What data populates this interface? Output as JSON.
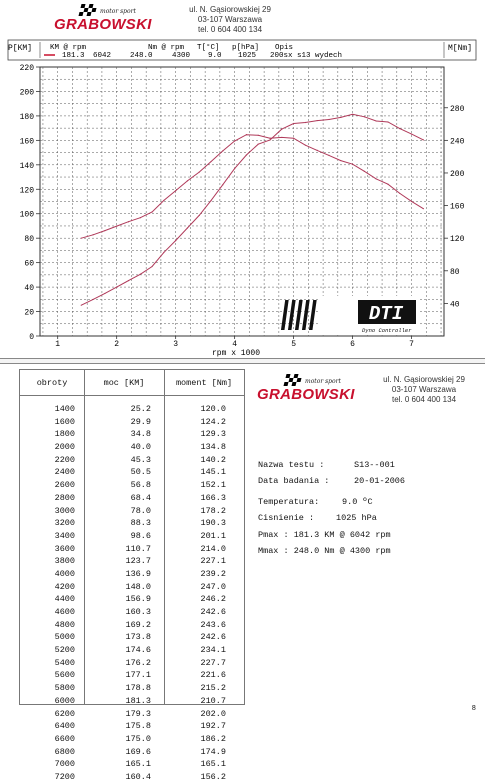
{
  "header": {
    "brand_tagline": "motor sport",
    "brand_name": "GRABOWSKI",
    "address_line1": "ul. N. Gąsiorowskiej 29",
    "address_line2": "03-107 Warszawa",
    "phone": "tel. 0 604 400 134"
  },
  "colors": {
    "accent": "#c8102e",
    "curve": "#b03a5a",
    "grid": "#444444"
  },
  "chart_data": {
    "type": "line",
    "legend_header": {
      "col1": "KM @ rpm",
      "col2": "Nm @ rpm",
      "col3": "T[°C]",
      "col4": "p[hPa]",
      "col5": "Opis"
    },
    "legend_entry": {
      "km": "181.3",
      "km_rpm": "6042",
      "nm": "248.0",
      "nm_rpm": "4300",
      "temp": "9.0",
      "pressure": "1025",
      "desc": "200sx s13 wydech"
    },
    "left_axis_label": "P[KM]",
    "right_axis_label": "M[Nm]",
    "xlabel": "rpm   x 1000",
    "xlim": [
      0.7,
      7.55
    ],
    "ylim_left": [
      0,
      220
    ],
    "ylim_right": [
      0,
      330
    ],
    "x_ticks": [
      "1",
      "2",
      "3",
      "4",
      "5",
      "6",
      "7"
    ],
    "y_ticks_left": [
      "0",
      "20",
      "40",
      "60",
      "80",
      "100",
      "120",
      "140",
      "160",
      "180",
      "200",
      "220"
    ],
    "y_ticks_right": [
      "40",
      "80",
      "120",
      "160",
      "200",
      "240",
      "280"
    ],
    "badge": {
      "text": "DTI",
      "subtext": "Dyno Controller"
    },
    "series": [
      {
        "name": "",
        "axis": "left",
        "x": [
          1.4,
          1.6,
          1.8,
          2.0,
          2.2,
          2.4,
          2.6,
          2.8,
          3.0,
          3.2,
          3.4,
          3.6,
          3.8,
          4.0,
          4.2,
          4.4,
          4.6,
          4.8,
          5.0,
          5.2,
          5.4,
          5.6,
          5.8,
          6.0,
          6.2,
          6.4,
          6.6,
          6.8,
          7.0,
          7.2
        ],
        "values": [
          25.2,
          29.9,
          34.8,
          40.0,
          45.3,
          50.5,
          56.8,
          68.4,
          78.0,
          88.3,
          98.6,
          110.7,
          123.7,
          136.9,
          148.0,
          156.9,
          160.3,
          169.2,
          173.8,
          174.6,
          176.2,
          177.1,
          178.8,
          181.3,
          179.3,
          175.8,
          175.0,
          169.6,
          165.1,
          160.4
        ]
      },
      {
        "name": "",
        "axis": "right",
        "x": [
          1.4,
          1.6,
          1.8,
          2.0,
          2.2,
          2.4,
          2.6,
          2.8,
          3.0,
          3.2,
          3.4,
          3.6,
          3.8,
          4.0,
          4.2,
          4.4,
          4.6,
          4.8,
          5.0,
          5.2,
          5.4,
          5.6,
          5.8,
          6.0,
          6.2,
          6.4,
          6.6,
          6.8,
          7.0,
          7.2
        ],
        "values": [
          120.0,
          124.2,
          129.3,
          134.8,
          140.2,
          145.1,
          152.1,
          166.3,
          178.2,
          190.3,
          201.1,
          214.0,
          227.1,
          239.2,
          247.0,
          246.2,
          242.6,
          243.6,
          242.6,
          234.1,
          227.7,
          221.6,
          215.2,
          210.7,
          202.0,
          192.7,
          186.2,
          174.9,
          165.1,
          156.2
        ]
      }
    ]
  },
  "table": {
    "headers": [
      "obroty",
      "moc [KM]",
      "moment [Nm]"
    ],
    "rows": [
      [
        "1400",
        "25.2",
        "120.0"
      ],
      [
        "1600",
        "29.9",
        "124.2"
      ],
      [
        "1800",
        "34.8",
        "129.3"
      ],
      [
        "2000",
        "40.0",
        "134.8"
      ],
      [
        "2200",
        "45.3",
        "140.2"
      ],
      [
        "2400",
        "50.5",
        "145.1"
      ],
      [
        "2600",
        "56.8",
        "152.1"
      ],
      [
        "2800",
        "68.4",
        "166.3"
      ],
      [
        "3000",
        "78.0",
        "178.2"
      ],
      [
        "3200",
        "88.3",
        "190.3"
      ],
      [
        "3400",
        "98.6",
        "201.1"
      ],
      [
        "3600",
        "110.7",
        "214.0"
      ],
      [
        "3800",
        "123.7",
        "227.1"
      ],
      [
        "4000",
        "136.9",
        "239.2"
      ],
      [
        "4200",
        "148.0",
        "247.0"
      ],
      [
        "4400",
        "156.9",
        "246.2"
      ],
      [
        "4600",
        "160.3",
        "242.6"
      ],
      [
        "4800",
        "169.2",
        "243.6"
      ],
      [
        "5000",
        "173.8",
        "242.6"
      ],
      [
        "5200",
        "174.6",
        "234.1"
      ],
      [
        "5400",
        "176.2",
        "227.7"
      ],
      [
        "5600",
        "177.1",
        "221.6"
      ],
      [
        "5800",
        "178.8",
        "215.2"
      ],
      [
        "6000",
        "181.3",
        "210.7"
      ],
      [
        "6200",
        "179.3",
        "202.0"
      ],
      [
        "6400",
        "175.8",
        "192.7"
      ],
      [
        "6600",
        "175.0",
        "186.2"
      ],
      [
        "6800",
        "169.6",
        "174.9"
      ],
      [
        "7000",
        "165.1",
        "165.1"
      ],
      [
        "7200",
        "160.4",
        "156.2"
      ]
    ]
  },
  "test_info": {
    "test_name_label": "Nazwa testu :",
    "test_name": "S13--001",
    "date_label": "Data badania :",
    "date": "20-01-2006",
    "temp_label": "Temperatura:",
    "temp_value": "9.0 ºC",
    "pressure_label": "Cisnienie :",
    "pressure_value": "1025 hPa",
    "pmax": "Pmax : 181.3 KM @  6042 rpm",
    "mmax": "Mmax : 248.0 Nm @  4300 rpm"
  },
  "page_number": "8"
}
